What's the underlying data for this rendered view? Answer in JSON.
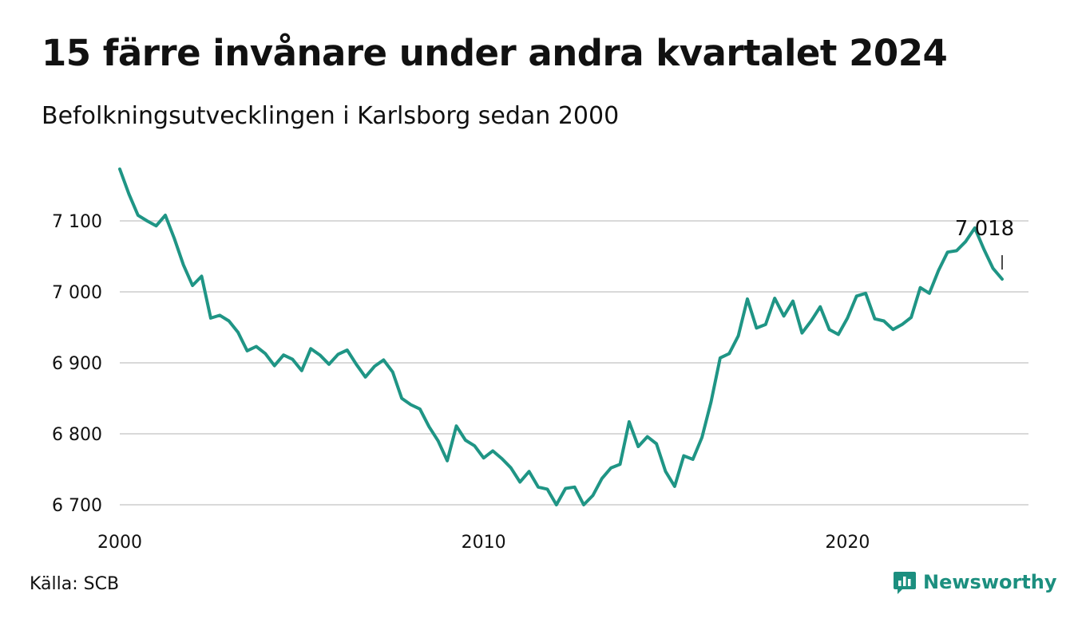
{
  "header": {
    "title": "15 färre invånare under andra kvartalet 2024",
    "subtitle": "Befolkningsutvecklingen i Karlsborg sedan 2000"
  },
  "footer": {
    "source": "Källa: SCB",
    "brand": "Newsworthy"
  },
  "colors": {
    "line": "#1f9585",
    "grid": "#d9d9d9",
    "brand": "#1c8f7f"
  },
  "chart_data": {
    "type": "line",
    "title": "15 färre invånare under andra kvartalet 2024",
    "subtitle": "Befolkningsutvecklingen i Karlsborg sedan 2000",
    "xlabel": "",
    "ylabel": "",
    "xlim": [
      2000,
      2024.5
    ],
    "ylim": [
      6700,
      7115
    ],
    "x_ticks": [
      {
        "value": 2000,
        "label": "2000"
      },
      {
        "value": 2010,
        "label": "2010"
      },
      {
        "value": 2020,
        "label": "2020"
      }
    ],
    "y_ticks": [
      {
        "value": 6700,
        "label": "6 700"
      },
      {
        "value": 6800,
        "label": "6 800"
      },
      {
        "value": 6900,
        "label": "6 900"
      },
      {
        "value": 7000,
        "label": "7 000"
      },
      {
        "value": 7100,
        "label": "7 100"
      }
    ],
    "grid": "horizontal",
    "start": "2000-Q1",
    "series": [
      {
        "values": [
          7173,
          7138,
          7108,
          7100,
          7093,
          7108,
          7075,
          7038,
          7009,
          7022,
          6963,
          6967,
          6959,
          6943,
          6917,
          6923,
          6913,
          6896,
          6911,
          6905,
          6889,
          6920,
          6911,
          6898,
          6912,
          6918,
          6898,
          6880,
          6895,
          6904,
          6887,
          6850,
          6841,
          6835,
          6810,
          6790,
          6762,
          6811,
          6791,
          6783,
          6766,
          6776,
          6765,
          6752,
          6732,
          6747,
          6725,
          6722,
          6700,
          6723,
          6725,
          6700,
          6713,
          6737,
          6752,
          6757,
          6817,
          6782,
          6796,
          6786,
          6747,
          6726,
          6769,
          6764,
          6795,
          6845,
          6907,
          6913,
          6938,
          6990,
          6949,
          6954,
          6991,
          6966,
          6987,
          6942,
          6959,
          6979,
          6947,
          6940,
          6963,
          6994,
          6998,
          6962,
          6959,
          6947,
          6954,
          6964,
          7006,
          6998,
          7030,
          7056,
          7058,
          7071,
          7090,
          7060,
          7033,
          7018
        ]
      }
    ],
    "annotations": [
      {
        "label": "7 018",
        "x": "2024-Q2",
        "value": 7018
      }
    ]
  }
}
